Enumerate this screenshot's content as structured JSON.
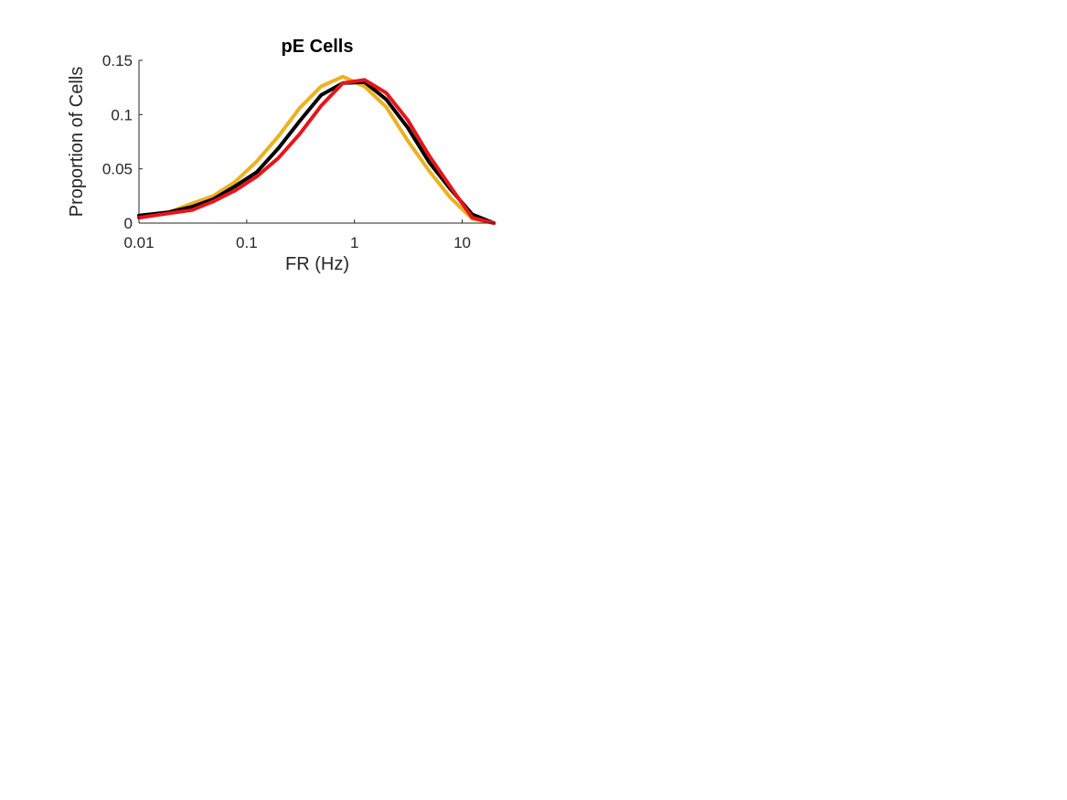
{
  "chart_data": {
    "type": "line",
    "title": "pE Cells",
    "xlabel": "FR (Hz)",
    "ylabel": "Proportion of Cells",
    "xscale": "log",
    "xlim": [
      0.01,
      20
    ],
    "ylim": [
      0,
      0.15
    ],
    "xticks": [
      0.01,
      0.1,
      1,
      10
    ],
    "xtick_labels": [
      "0.01",
      "0.1",
      "1",
      "10"
    ],
    "yticks": [
      0,
      0.05,
      0.1,
      0.15
    ],
    "ytick_labels": [
      "0",
      "0.05",
      "0.1",
      "0.15"
    ],
    "grid": false,
    "legend": "none",
    "x": [
      0.01,
      0.019,
      0.031,
      0.049,
      0.078,
      0.124,
      0.197,
      0.31,
      0.49,
      0.78,
      1.24,
      1.97,
      3.12,
      4.94,
      7.83,
      12.4,
      19.7
    ],
    "series": [
      {
        "color": "#EDB120",
        "values": [
          0.006,
          0.01,
          0.018,
          0.025,
          0.038,
          0.057,
          0.08,
          0.106,
          0.126,
          0.135,
          0.126,
          0.107,
          0.076,
          0.048,
          0.023,
          0.004,
          0.0
        ]
      },
      {
        "color": "#000000",
        "values": [
          0.007,
          0.01,
          0.015,
          0.022,
          0.034,
          0.047,
          0.069,
          0.094,
          0.118,
          0.129,
          0.13,
          0.114,
          0.088,
          0.056,
          0.031,
          0.008,
          0.0
        ]
      },
      {
        "color": "#E8141A",
        "values": [
          0.005,
          0.009,
          0.012,
          0.02,
          0.03,
          0.043,
          0.06,
          0.082,
          0.108,
          0.129,
          0.132,
          0.12,
          0.095,
          0.062,
          0.033,
          0.005,
          0.0
        ]
      }
    ]
  }
}
